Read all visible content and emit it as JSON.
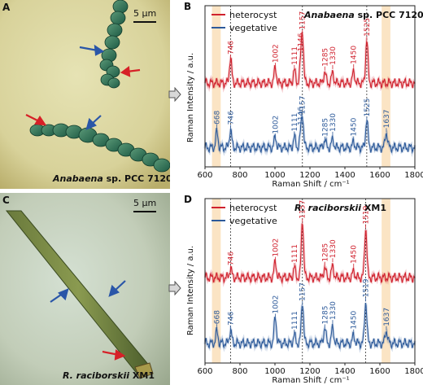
{
  "panels": {
    "A": {
      "letter": "A",
      "label_italic": "Anabaena",
      "label_rest": " sp. PCC 7120",
      "scale": "5 μm"
    },
    "C": {
      "letter": "C",
      "label_italic": "R. raciborskii",
      "label_rest": " XM1",
      "scale": "5 μm"
    }
  },
  "colors": {
    "heterocyst": "#d0222e",
    "vegetative": "#2d5a9a",
    "highlight": "#fbe4c4"
  },
  "chart_data": [
    {
      "type": "line",
      "panel_letter": "B",
      "title_italic": "Anabaena",
      "title_rest": " sp. PCC 7120",
      "xlabel": "Raman Shift / cm⁻¹",
      "ylabel": "Raman Intensity / a.u.",
      "xlim": [
        600,
        1800
      ],
      "xticks": [
        600,
        800,
        1000,
        1200,
        1400,
        1600,
        1800
      ],
      "legend": [
        "heterocyst",
        "vegetative"
      ],
      "highlight_bands": [
        [
          640,
          690
        ],
        [
          1610,
          1660
        ]
      ],
      "dashed_lines": [
        746,
        1157,
        1525
      ],
      "series": [
        {
          "name": "heterocyst",
          "peaks": [
            [
              746,
              50
            ],
            [
              1002,
              30
            ],
            [
              1111,
              25
            ],
            [
              1146,
              28
            ],
            [
              1157,
              95
            ],
            [
              1285,
              22
            ],
            [
              1330,
              20
            ],
            [
              1450,
              22
            ],
            [
              1525,
              85
            ]
          ],
          "labels": [
            "746",
            "1002",
            "1111",
            "1146",
            "1157",
            "1285",
            "1330",
            "1450",
            "1525"
          ]
        },
        {
          "name": "vegetative",
          "peaks": [
            [
              668,
              30
            ],
            [
              746,
              35
            ],
            [
              1002,
              20
            ],
            [
              1111,
              20
            ],
            [
              1146,
              18
            ],
            [
              1157,
              60
            ],
            [
              1285,
              15
            ],
            [
              1330,
              16
            ],
            [
              1450,
              10
            ],
            [
              1525,
              55
            ],
            [
              1637,
              30
            ]
          ],
          "labels": [
            "668",
            "746",
            "1002",
            "1111",
            "1146",
            "1157",
            "1285",
            "1330",
            "1450",
            "1525",
            "1637"
          ]
        }
      ]
    },
    {
      "type": "line",
      "panel_letter": "D",
      "title_italic": "R. raciborskii",
      "title_rest": " XM1",
      "xlabel": "Raman Shift / cm⁻¹",
      "ylabel": "Raman Intensity / a.u.",
      "xlim": [
        600,
        1800
      ],
      "xticks": [
        600,
        800,
        1000,
        1200,
        1400,
        1600,
        1800
      ],
      "legend": [
        "heterocyst",
        "vegetative"
      ],
      "highlight_bands": [
        [
          640,
          690
        ],
        [
          1610,
          1660
        ]
      ],
      "dashed_lines": [
        746,
        1157,
        1519
      ],
      "series": [
        {
          "name": "heterocyst",
          "peaks": [
            [
              746,
              18
            ],
            [
              1002,
              30
            ],
            [
              1111,
              18
            ],
            [
              1157,
              110
            ],
            [
              1285,
              20
            ],
            [
              1330,
              22
            ],
            [
              1450,
              12
            ],
            [
              1519,
              95
            ]
          ],
          "labels": [
            "746",
            "1002",
            "1111",
            "1157",
            "1285",
            "1330",
            "1450",
            "1519"
          ]
        },
        {
          "name": "vegetative",
          "peaks": [
            [
              668,
              22
            ],
            [
              746,
              25
            ],
            [
              1002,
              50
            ],
            [
              1111,
              15
            ],
            [
              1157,
              80
            ],
            [
              1285,
              30
            ],
            [
              1330,
              30
            ],
            [
              1450,
              15
            ],
            [
              1519,
              80
            ],
            [
              1637,
              25
            ]
          ],
          "labels": [
            "668",
            "746",
            "1002",
            "1111",
            "1157",
            "1285",
            "1330",
            "1450",
            "1519",
            "1637"
          ]
        }
      ]
    }
  ]
}
